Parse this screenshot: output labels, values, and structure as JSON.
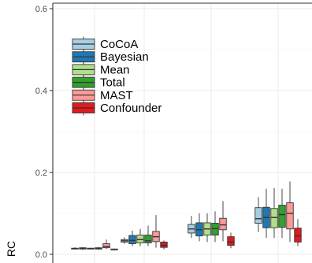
{
  "chart_data": {
    "type": "boxplot",
    "ylabel": "RC",
    "xlabel": "",
    "ylim": [
      0,
      0.6
    ],
    "yticks": [
      0.0,
      0.2,
      0.4,
      0.6
    ],
    "ytick_labels": [
      "0.0",
      "0.2",
      "0.4",
      "0.6"
    ],
    "grid": true,
    "legend_position": "top-left",
    "groups": 4,
    "series": [
      {
        "name": "CoCoA",
        "color": "#a6cee3",
        "boxes": [
          {
            "q1": 0.013,
            "median": 0.014,
            "q3": 0.015,
            "whisker_low": 0.012,
            "whisker_high": 0.017
          },
          {
            "q1": 0.03,
            "median": 0.033,
            "q3": 0.036,
            "whisker_low": 0.026,
            "whisker_high": 0.041
          },
          {
            "q1": 0.052,
            "median": 0.062,
            "q3": 0.073,
            "whisker_low": 0.04,
            "whisker_high": 0.094
          },
          {
            "q1": 0.076,
            "median": 0.087,
            "q3": 0.114,
            "whisker_low": 0.054,
            "whisker_high": 0.14
          }
        ]
      },
      {
        "name": "Bayesian",
        "color": "#1f78b4",
        "boxes": [
          {
            "q1": 0.013,
            "median": 0.014,
            "q3": 0.016,
            "whisker_low": 0.011,
            "whisker_high": 0.018
          },
          {
            "q1": 0.026,
            "median": 0.034,
            "q3": 0.046,
            "whisker_low": 0.02,
            "whisker_high": 0.058
          },
          {
            "q1": 0.045,
            "median": 0.06,
            "q3": 0.077,
            "whisker_low": 0.032,
            "whisker_high": 0.1
          },
          {
            "q1": 0.065,
            "median": 0.09,
            "q3": 0.115,
            "whisker_low": 0.04,
            "whisker_high": 0.16
          }
        ]
      },
      {
        "name": "Mean",
        "color": "#b2df8a",
        "boxes": [
          {
            "q1": 0.013,
            "median": 0.014,
            "q3": 0.015,
            "whisker_low": 0.012,
            "whisker_high": 0.016
          },
          {
            "q1": 0.028,
            "median": 0.036,
            "q3": 0.047,
            "whisker_low": 0.02,
            "whisker_high": 0.062
          },
          {
            "q1": 0.047,
            "median": 0.062,
            "q3": 0.077,
            "whisker_low": 0.03,
            "whisker_high": 0.1
          },
          {
            "q1": 0.065,
            "median": 0.09,
            "q3": 0.112,
            "whisker_low": 0.04,
            "whisker_high": 0.162
          }
        ]
      },
      {
        "name": "Total",
        "color": "#33a02c",
        "boxes": [
          {
            "q1": 0.013,
            "median": 0.014,
            "q3": 0.016,
            "whisker_low": 0.011,
            "whisker_high": 0.018
          },
          {
            "q1": 0.028,
            "median": 0.033,
            "q3": 0.047,
            "whisker_low": 0.02,
            "whisker_high": 0.07
          },
          {
            "q1": 0.047,
            "median": 0.063,
            "q3": 0.076,
            "whisker_low": 0.03,
            "whisker_high": 0.105
          },
          {
            "q1": 0.066,
            "median": 0.097,
            "q3": 0.12,
            "whisker_low": 0.04,
            "whisker_high": 0.16
          }
        ]
      },
      {
        "name": "MAST",
        "color": "#fb9a99",
        "boxes": [
          {
            "q1": 0.016,
            "median": 0.019,
            "q3": 0.026,
            "whisker_low": 0.013,
            "whisker_high": 0.036
          },
          {
            "q1": 0.031,
            "median": 0.043,
            "q3": 0.056,
            "whisker_low": 0.016,
            "whisker_high": 0.096
          },
          {
            "q1": 0.06,
            "median": 0.072,
            "q3": 0.088,
            "whisker_low": 0.032,
            "whisker_high": 0.13
          },
          {
            "q1": 0.062,
            "median": 0.1,
            "q3": 0.126,
            "whisker_low": 0.03,
            "whisker_high": 0.178
          }
        ]
      },
      {
        "name": "Confounder",
        "color": "#e31a1c",
        "boxes": [
          {
            "q1": 0.011,
            "median": 0.012,
            "q3": 0.013,
            "whisker_low": 0.01,
            "whisker_high": 0.014
          },
          {
            "q1": 0.017,
            "median": 0.022,
            "q3": 0.03,
            "whisker_low": 0.012,
            "whisker_high": 0.034
          },
          {
            "q1": 0.022,
            "median": 0.03,
            "q3": 0.043,
            "whisker_low": 0.015,
            "whisker_high": 0.053
          },
          {
            "q1": 0.03,
            "median": 0.045,
            "q3": 0.064,
            "whisker_low": 0.02,
            "whisker_high": 0.086
          }
        ]
      }
    ]
  }
}
